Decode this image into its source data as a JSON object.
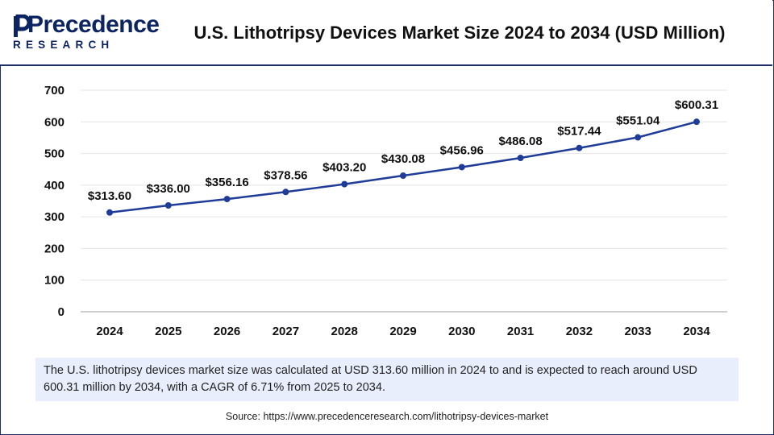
{
  "header": {
    "logo_word": "Precedence",
    "logo_sub": "RESEARCH",
    "title": "U.S. Lithotripsy Devices Market Size 2024 to 2034 (USD Million)"
  },
  "chart_data": {
    "type": "line",
    "title": "U.S. Lithotripsy Devices Market Size 2024 to 2034 (USD Million)",
    "categories": [
      "2024",
      "2025",
      "2026",
      "2027",
      "2028",
      "2029",
      "2030",
      "2031",
      "2032",
      "2033",
      "2034"
    ],
    "values": [
      313.6,
      336.0,
      356.16,
      378.56,
      403.2,
      430.08,
      456.96,
      486.08,
      517.44,
      551.04,
      600.31
    ],
    "data_labels": [
      "$313.60",
      "$336.00",
      "$356.16",
      "$378.56",
      "$403.20",
      "$430.08",
      "$456.96",
      "$486.08",
      "$517.44",
      "$551.04",
      "$600.31"
    ],
    "ylim": [
      0,
      700
    ],
    "yticks": [
      "0",
      "100",
      "200",
      "300",
      "400",
      "500",
      "600",
      "700"
    ],
    "grid": true,
    "line_color": "#1f3c99"
  },
  "summary": {
    "text": "The U.S. lithotripsy devices market size was calculated at USD 313.60 million in 2024 to and is expected to reach around USD 600.31 million by 2034, with a CAGR of 6.71% from 2025 to 2034."
  },
  "source": {
    "text": "Source: https://www.precedenceresearch.com/lithotripsy-devices-market"
  }
}
